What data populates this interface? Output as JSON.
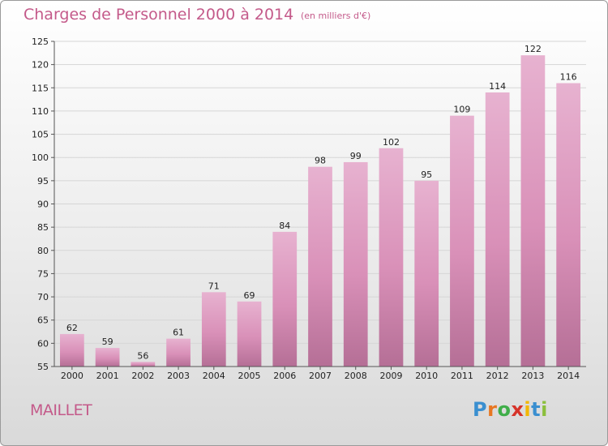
{
  "title": "Charges de Personnel 2000 à 2014",
  "subtitle": "(en milliers d'€)",
  "footer_label": "MAILLET",
  "logo": {
    "text": "Proxiti",
    "letters": [
      "P",
      "r",
      "o",
      "x",
      "i",
      "t",
      "i"
    ],
    "colors": [
      "#3a8fd0",
      "#e87722",
      "#3fae49",
      "#d6332a",
      "#f2b705",
      "#3a8fd0",
      "#8bbf3c"
    ]
  },
  "colors": {
    "bar": "#d990b8",
    "bar_top": "#e7b2d0",
    "bar_bottom": "#b56f96",
    "title": "#c45a8a"
  },
  "chart_data": {
    "type": "bar",
    "title": "Charges de Personnel 2000 à 2014",
    "subtitle": "(en milliers d'€)",
    "categories": [
      "2000",
      "2001",
      "2002",
      "2003",
      "2004",
      "2005",
      "2006",
      "2007",
      "2008",
      "2009",
      "2010",
      "2011",
      "2012",
      "2013",
      "2014"
    ],
    "values": [
      62,
      59,
      56,
      61,
      71,
      69,
      84,
      98,
      99,
      102,
      95,
      109,
      114,
      122,
      116
    ],
    "ylim": [
      55,
      125
    ],
    "yticks": [
      55,
      60,
      65,
      70,
      75,
      80,
      85,
      90,
      95,
      100,
      105,
      110,
      115,
      120,
      125
    ],
    "grid": true,
    "xlabel": "",
    "ylabel": ""
  }
}
